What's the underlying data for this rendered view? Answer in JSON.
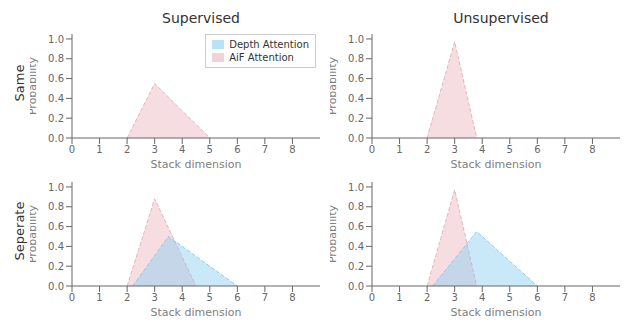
{
  "chart_data": [
    {
      "type": "area",
      "title": "Supervised",
      "annotations": [
        "Same"
      ],
      "xlabel": "Stack dimension",
      "ylabel": "Probability",
      "xlim": [
        0,
        9
      ],
      "ylim": [
        0,
        1.05
      ],
      "xticks": [
        0,
        1,
        2,
        3,
        4,
        5,
        6,
        7,
        8
      ],
      "yticks": [
        {
          "value": 0,
          "label": "0.0"
        },
        0.2,
        0.4,
        0.6,
        0.8,
        {
          "value": 1,
          "label": "1.0"
        }
      ],
      "legend": "upper right",
      "series": [
        {
          "name": "Depth Attention",
          "color": "#89CFF0",
          "x": [],
          "values": []
        },
        {
          "name": "AiF Attention",
          "color": "#E8B4BC",
          "x": [
            2.0,
            3.0,
            5.0
          ],
          "values": [
            0.0,
            0.55,
            0.0
          ]
        }
      ]
    },
    {
      "type": "area",
      "title": "Unsupervised",
      "xlabel": "Stack dimension",
      "ylabel": "Probability",
      "xlim": [
        0,
        9
      ],
      "ylim": [
        0,
        1.05
      ],
      "xticks": [
        0,
        1,
        2,
        3,
        4,
        5,
        6,
        7,
        8
      ],
      "yticks": [
        {
          "value": 0,
          "label": "0.0"
        },
        0.2,
        0.4,
        0.6,
        0.8,
        {
          "value": 1,
          "label": "1.0"
        }
      ],
      "series": [
        {
          "name": "AiF Attention",
          "color": "#E8B4BC",
          "x": [
            2.0,
            3.0,
            3.8
          ],
          "values": [
            0.0,
            0.97,
            0.0
          ]
        }
      ]
    },
    {
      "type": "area",
      "annotations": [
        "Seperate"
      ],
      "xlabel": "Stack dimension",
      "ylabel": "Probability",
      "xlim": [
        0,
        9
      ],
      "ylim": [
        0,
        1.05
      ],
      "xticks": [
        0,
        1,
        2,
        3,
        4,
        5,
        6,
        7,
        8
      ],
      "yticks": [
        {
          "value": 0,
          "label": "0.0"
        },
        0.2,
        0.4,
        0.6,
        0.8,
        {
          "value": 1,
          "label": "1.0"
        }
      ],
      "series": [
        {
          "name": "Depth Attention",
          "color": "#89CFF0",
          "x": [
            2.2,
            3.5,
            6.0
          ],
          "values": [
            0.0,
            0.5,
            0.0
          ]
        },
        {
          "name": "AiF Attention",
          "color": "#E8B4BC",
          "x": [
            2.0,
            3.0,
            4.5
          ],
          "values": [
            0.0,
            0.88,
            0.0
          ]
        }
      ]
    },
    {
      "type": "area",
      "xlabel": "Stack dimension",
      "ylabel": "Probability",
      "xlim": [
        0,
        9
      ],
      "ylim": [
        0,
        1.05
      ],
      "xticks": [
        0,
        1,
        2,
        3,
        4,
        5,
        6,
        7,
        8
      ],
      "yticks": [
        {
          "value": 0,
          "label": "0.0"
        },
        0.2,
        0.4,
        0.6,
        0.8,
        {
          "value": 1,
          "label": "1.0"
        }
      ],
      "series": [
        {
          "name": "Depth Attention",
          "color": "#89CFF0",
          "x": [
            2.2,
            3.8,
            6.0
          ],
          "values": [
            0.0,
            0.55,
            0.0
          ]
        },
        {
          "name": "AiF Attention",
          "color": "#E8B4BC",
          "x": [
            2.0,
            3.0,
            3.8
          ],
          "values": [
            0.0,
            0.97,
            0.0
          ]
        }
      ]
    }
  ]
}
